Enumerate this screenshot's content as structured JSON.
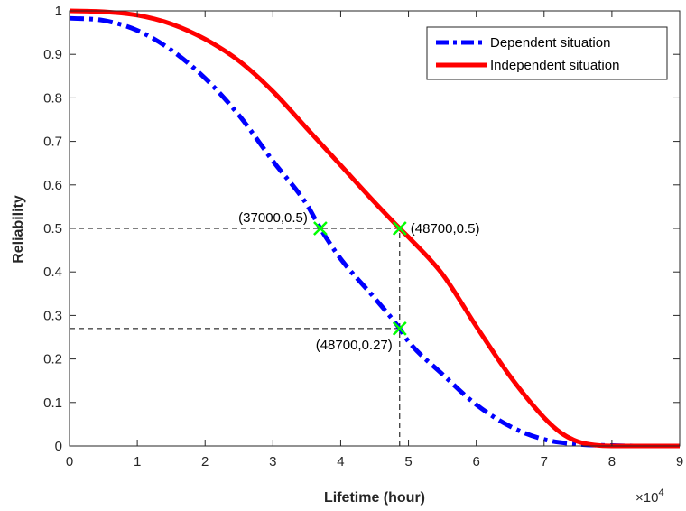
{
  "chart_data": {
    "type": "line",
    "xlabel": "Lifetime (hour)",
    "ylabel": "Reliability",
    "xlim": [
      0,
      90000
    ],
    "ylim": [
      0,
      1
    ],
    "x_multiplier_base": "×10",
    "x_multiplier_exp": "4",
    "x_ticks": [
      0,
      10000,
      20000,
      30000,
      40000,
      50000,
      60000,
      70000,
      80000,
      90000
    ],
    "x_tick_labels": [
      "0",
      "1",
      "2",
      "3",
      "4",
      "5",
      "6",
      "7",
      "8",
      "9"
    ],
    "y_ticks": [
      0,
      0.1,
      0.2,
      0.3,
      0.4,
      0.5,
      0.6,
      0.7,
      0.8,
      0.9,
      1
    ],
    "y_tick_labels": [
      "0",
      "0.1",
      "0.2",
      "0.3",
      "0.4",
      "0.5",
      "0.6",
      "0.7",
      "0.8",
      "0.9",
      "1"
    ],
    "grid": false,
    "legend_position": "top-right",
    "series": [
      {
        "name": "Dependent situation",
        "color": "#0000ff",
        "style": "dash-dot",
        "x": [
          0,
          5000,
          10000,
          15000,
          20000,
          25000,
          30000,
          35000,
          37000,
          40000,
          45000,
          48700,
          50000,
          55000,
          60000,
          65000,
          70000,
          75000,
          80000,
          85000,
          90000
        ],
        "y": [
          0.983,
          0.978,
          0.955,
          0.91,
          0.845,
          0.76,
          0.655,
          0.555,
          0.5,
          0.43,
          0.34,
          0.27,
          0.24,
          0.165,
          0.095,
          0.045,
          0.015,
          0.004,
          0.001,
          0.0,
          0.0
        ]
      },
      {
        "name": "Independent situation",
        "color": "#ff0000",
        "style": "solid",
        "x": [
          0,
          5000,
          10000,
          15000,
          20000,
          25000,
          30000,
          35000,
          40000,
          45000,
          48700,
          50000,
          55000,
          60000,
          65000,
          70000,
          72500,
          75000,
          77500,
          80000,
          85000,
          90000
        ],
        "y": [
          1.0,
          0.998,
          0.99,
          0.97,
          0.935,
          0.885,
          0.815,
          0.73,
          0.645,
          0.56,
          0.5,
          0.48,
          0.395,
          0.275,
          0.16,
          0.065,
          0.03,
          0.01,
          0.002,
          0.0,
          0.0,
          0.0
        ]
      }
    ],
    "annotations": [
      {
        "label": "(37000,0.5)",
        "x": 37000,
        "y": 0.5,
        "anchor": "upper-left"
      },
      {
        "label": "(48700,0.5)",
        "x": 48700,
        "y": 0.5,
        "anchor": "right"
      },
      {
        "label": "(48700,0.27)",
        "x": 48700,
        "y": 0.27,
        "anchor": "lower-left"
      }
    ],
    "markers": [
      {
        "x": 37000,
        "y": 0.5,
        "color": "#00ff00",
        "symbol": "x"
      },
      {
        "x": 48700,
        "y": 0.5,
        "color": "#00ff00",
        "symbol": "x"
      },
      {
        "x": 48700,
        "y": 0.27,
        "color": "#00ff00",
        "symbol": "x"
      }
    ],
    "reference_lines": [
      {
        "from": [
          0,
          0.5
        ],
        "to": [
          48700,
          0.5
        ]
      },
      {
        "from": [
          0,
          0.27
        ],
        "to": [
          48700,
          0.27
        ]
      },
      {
        "from": [
          48700,
          0
        ],
        "to": [
          48700,
          0.5
        ]
      }
    ]
  }
}
